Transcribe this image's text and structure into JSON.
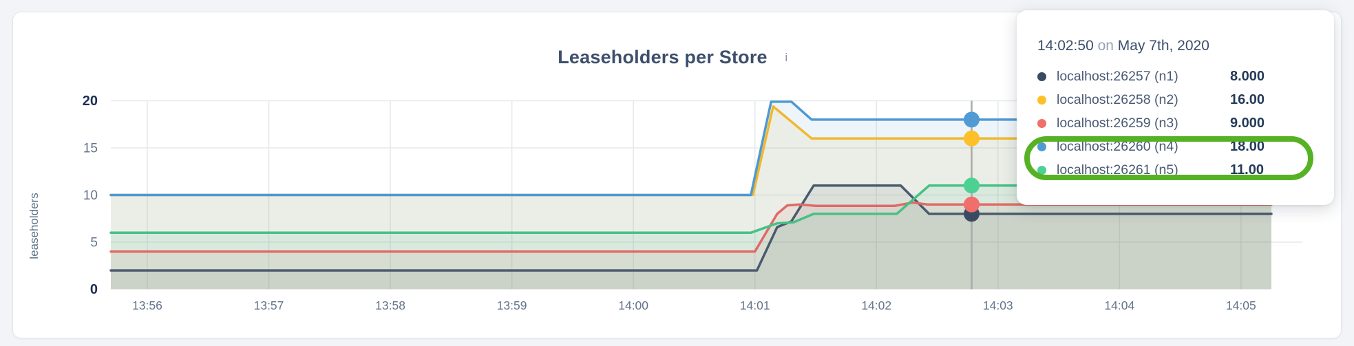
{
  "chart": {
    "title": "Leaseholders per Store",
    "info_icon_glyph": "i"
  },
  "tooltip": {
    "time": "14:02:50",
    "on_word": "on",
    "date": "May 7th, 2020",
    "highlight_color": "#56b224",
    "rows": [
      {
        "label": "localhost:26257 (n1)",
        "value": "8.000",
        "color": "#3a4a63"
      },
      {
        "label": "localhost:26258 (n2)",
        "value": "16.00",
        "color": "#fdc029"
      },
      {
        "label": "localhost:26259 (n3)",
        "value": "9.000",
        "color": "#f06e6b"
      },
      {
        "label": "localhost:26260 (n4)",
        "value": "18.00",
        "color": "#519bd5"
      },
      {
        "label": "localhost:26261 (n5)",
        "value": "11.00",
        "color": "#4cd192"
      }
    ]
  },
  "chart_data": {
    "type": "area",
    "title": "Leaseholders per Store",
    "ylabel": "leaseholders",
    "ylim": [
      0,
      20
    ],
    "yticks": [
      0,
      5,
      10,
      15,
      20
    ],
    "bold_yticks": [
      0,
      20
    ],
    "grid": true,
    "legend_position": "tooltip-overlay",
    "x_domain_seconds": [
      0,
      573
    ],
    "x_start_time": "13:55:42",
    "xticks": [
      {
        "t": 18,
        "label": "13:56"
      },
      {
        "t": 78,
        "label": "13:57"
      },
      {
        "t": 138,
        "label": "13:58"
      },
      {
        "t": 198,
        "label": "13:59"
      },
      {
        "t": 258,
        "label": "14:00"
      },
      {
        "t": 318,
        "label": "14:01"
      },
      {
        "t": 378,
        "label": "14:02"
      },
      {
        "t": 438,
        "label": "14:03"
      },
      {
        "t": 498,
        "label": "14:04"
      },
      {
        "t": 558,
        "label": "14:05"
      }
    ],
    "series": [
      {
        "name": "localhost:26257 (n1)",
        "color": "#4a5a6e",
        "dot_color": "#3a4a63",
        "points": [
          [
            0,
            2
          ],
          [
            319,
            2
          ],
          [
            329,
            6.6
          ],
          [
            336,
            7.2
          ],
          [
            347,
            11
          ],
          [
            390,
            11
          ],
          [
            404,
            8
          ],
          [
            573,
            8
          ]
        ]
      },
      {
        "name": "localhost:26258 (n2)",
        "color": "#f0b82d",
        "dot_color": "#fdc029",
        "points": [
          [
            0,
            10
          ],
          [
            317,
            10
          ],
          [
            327,
            19.4
          ],
          [
            346,
            16
          ],
          [
            573,
            16
          ]
        ]
      },
      {
        "name": "localhost:26259 (n3)",
        "color": "#e06a66",
        "dot_color": "#f06e6b",
        "points": [
          [
            0,
            4
          ],
          [
            318,
            4
          ],
          [
            329,
            8
          ],
          [
            334,
            8.9
          ],
          [
            340,
            9
          ],
          [
            348,
            8.85
          ],
          [
            387,
            8.85
          ],
          [
            396,
            9.2
          ],
          [
            403,
            9
          ],
          [
            573,
            9
          ]
        ]
      },
      {
        "name": "localhost:26260 (n4)",
        "color": "#4f99d2",
        "dot_color": "#519bd5",
        "points": [
          [
            0,
            10
          ],
          [
            316,
            10
          ],
          [
            326,
            19.9
          ],
          [
            336,
            19.9
          ],
          [
            346,
            18
          ],
          [
            573,
            18
          ]
        ]
      },
      {
        "name": "localhost:26261 (n5)",
        "color": "#45c185",
        "dot_color": "#4cd192",
        "points": [
          [
            0,
            6
          ],
          [
            316,
            6
          ],
          [
            329,
            7
          ],
          [
            337,
            7.1
          ],
          [
            347,
            8
          ],
          [
            388,
            8
          ],
          [
            404,
            11
          ],
          [
            573,
            11
          ]
        ]
      }
    ],
    "hover": {
      "t": 425,
      "time_label": "14:02:50",
      "values": [
        8,
        16,
        9,
        18,
        11
      ]
    }
  },
  "colors": {
    "grid": "#e6e9ec",
    "hover_line": "#aaaaaa",
    "tick_label": "#64748b",
    "bold_tick_label": "#1c2f52",
    "axis_label": "#5a7184"
  }
}
